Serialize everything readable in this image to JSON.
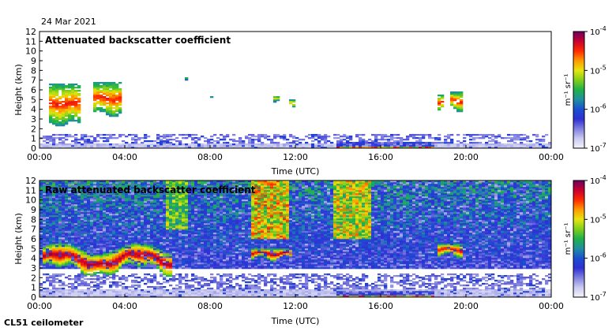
{
  "date": "24 Mar 2021",
  "footer": "CL51 ceilometer",
  "colors": {
    "colormap": [
      "#f4f4fb",
      "#c9c9f0",
      "#7f7fe0",
      "#2f2fd4",
      "#1a4fd0",
      "#1f8f9f",
      "#1fb04a",
      "#7fcf1a",
      "#e6e60f",
      "#ff9a00",
      "#ff2a00",
      "#c80030",
      "#6a0060"
    ]
  },
  "chart_data": [
    {
      "type": "heatmap",
      "title": "Attenuated backscatter coefficient",
      "xlabel": "Time (UTC)",
      "ylabel": "Height (km)",
      "xlim": [
        0,
        24
      ],
      "ylim": [
        0,
        12
      ],
      "xticklabels": [
        "00:00",
        "04:00",
        "08:00",
        "12:00",
        "16:00",
        "20:00",
        "00:00"
      ],
      "yticklabels": [
        "0",
        "1",
        "2",
        "3",
        "4",
        "5",
        "6",
        "7",
        "8",
        "9",
        "10",
        "11",
        "12"
      ],
      "colorbar": {
        "label": "m⁻¹ sr⁻¹",
        "ticks": [
          {
            "base": "10",
            "exp": "-4"
          },
          {
            "base": "10",
            "exp": "-5"
          },
          {
            "base": "10",
            "exp": "-6"
          },
          {
            "base": "10",
            "exp": "-7"
          }
        ]
      },
      "features": [
        {
          "kind": "boundary_layer",
          "t_start": 0,
          "t_end": 24,
          "h_top_km": 1.5,
          "mean_level": 0.2
        },
        {
          "kind": "cloud",
          "t_start": 0.5,
          "t_end": 1.9,
          "h_bottom_km": 2.5,
          "h_top_km": 6.7,
          "intensity": 0.8
        },
        {
          "kind": "cloud",
          "t_start": 2.5,
          "t_end": 3.8,
          "h_bottom_km": 3.5,
          "h_top_km": 6.8,
          "intensity": 0.8
        },
        {
          "kind": "cloud",
          "t_start": 6.6,
          "t_end": 6.9,
          "h_bottom_km": 7.0,
          "h_top_km": 7.3,
          "intensity": 0.6
        },
        {
          "kind": "cloud",
          "t_start": 8.0,
          "t_end": 8.1,
          "h_bottom_km": 5.0,
          "h_top_km": 5.3,
          "intensity": 0.5
        },
        {
          "kind": "cloud",
          "t_start": 11.0,
          "t_end": 11.2,
          "h_bottom_km": 5.0,
          "h_top_km": 5.5,
          "intensity": 0.6
        },
        {
          "kind": "cloud",
          "t_start": 11.7,
          "t_end": 12.0,
          "h_bottom_km": 4.2,
          "h_top_km": 5.0,
          "intensity": 0.7
        },
        {
          "kind": "cloud",
          "t_start": 18.6,
          "t_end": 18.9,
          "h_bottom_km": 4.0,
          "h_top_km": 5.5,
          "intensity": 0.8
        },
        {
          "kind": "cloud",
          "t_start": 19.3,
          "t_end": 19.8,
          "h_bottom_km": 4.0,
          "h_top_km": 5.8,
          "intensity": 0.8
        },
        {
          "kind": "fog_layer",
          "t_start": 13.9,
          "t_end": 18.5,
          "h_bottom_km": 0.0,
          "h_top_km": 0.6,
          "intensity": 0.9
        }
      ]
    },
    {
      "type": "heatmap",
      "title": "Raw attenuated backscatter coefficient",
      "xlabel": "Time (UTC)",
      "ylabel": "Height (km)",
      "xlim": [
        0,
        24
      ],
      "ylim": [
        0,
        12
      ],
      "xticklabels": [
        "00:00",
        "04:00",
        "08:00",
        "12:00",
        "16:00",
        "20:00",
        "00:00"
      ],
      "yticklabels": [
        "0",
        "1",
        "2",
        "3",
        "4",
        "5",
        "6",
        "7",
        "8",
        "9",
        "10",
        "11",
        "12"
      ],
      "colorbar": {
        "label": "m⁻¹ sr⁻¹",
        "ticks": [
          {
            "base": "10",
            "exp": "-4"
          },
          {
            "base": "10",
            "exp": "-5"
          },
          {
            "base": "10",
            "exp": "-6"
          },
          {
            "base": "10",
            "exp": "-7"
          }
        ]
      },
      "features": [
        {
          "kind": "noise_background",
          "t_start": 0,
          "t_end": 24,
          "h_bottom_km": 3.0,
          "h_top_km": 12.0,
          "intensity": 0.55
        },
        {
          "kind": "noise_column",
          "t_start": 10.0,
          "t_end": 11.7,
          "h_bottom_km": 6.0,
          "h_top_km": 12.0,
          "intensity": 0.85
        },
        {
          "kind": "noise_column",
          "t_start": 13.8,
          "t_end": 15.5,
          "h_bottom_km": 6.0,
          "h_top_km": 12.0,
          "intensity": 0.8
        },
        {
          "kind": "noise_column",
          "t_start": 6.0,
          "t_end": 7.0,
          "h_bottom_km": 7.0,
          "h_top_km": 12.0,
          "intensity": 0.7
        },
        {
          "kind": "boundary_layer",
          "t_start": 0,
          "t_end": 24,
          "h_top_km": 2.5,
          "mean_level": 0.1
        },
        {
          "kind": "cloud_layer",
          "t_start": 0.2,
          "t_end": 6.2,
          "h_bottom_km": 2.8,
          "h_top_km": 5.0,
          "intensity": 0.9
        },
        {
          "kind": "cloud",
          "t_start": 10.0,
          "t_end": 11.9,
          "h_bottom_km": 4.0,
          "h_top_km": 5.0,
          "intensity": 0.9
        },
        {
          "kind": "cloud",
          "t_start": 18.6,
          "t_end": 19.8,
          "h_bottom_km": 4.3,
          "h_top_km": 5.5,
          "intensity": 0.85
        },
        {
          "kind": "fog_layer",
          "t_start": 13.9,
          "t_end": 18.5,
          "h_bottom_km": 0.0,
          "h_top_km": 0.6,
          "intensity": 0.9
        }
      ]
    }
  ]
}
